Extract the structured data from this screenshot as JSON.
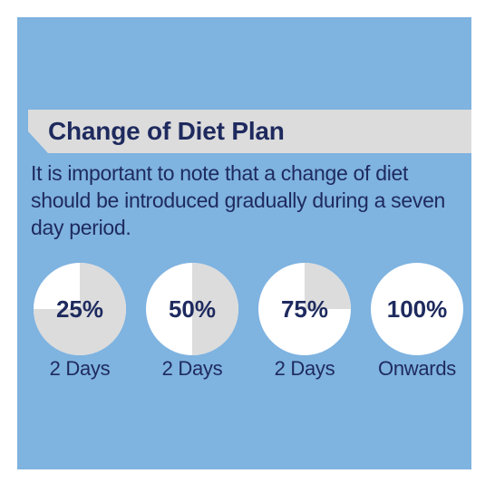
{
  "title": "Change of Diet Plan",
  "description": "It is important to note that a change of diet should be introduced gradually during a seven day period.",
  "colors": {
    "panel": "#7fb3e0",
    "title_bar": "#dcdcdc",
    "text": "#1e2a5e",
    "circle": "#ffffff",
    "circle_fill": "#dcdcdc"
  },
  "steps": [
    {
      "percent_label": "25%",
      "fraction": 0.25,
      "duration": "2 Days"
    },
    {
      "percent_label": "50%",
      "fraction": 0.5,
      "duration": "2 Days"
    },
    {
      "percent_label": "75%",
      "fraction": 0.75,
      "duration": "2 Days"
    },
    {
      "percent_label": "100%",
      "fraction": 1.0,
      "duration": "Onwards"
    }
  ]
}
